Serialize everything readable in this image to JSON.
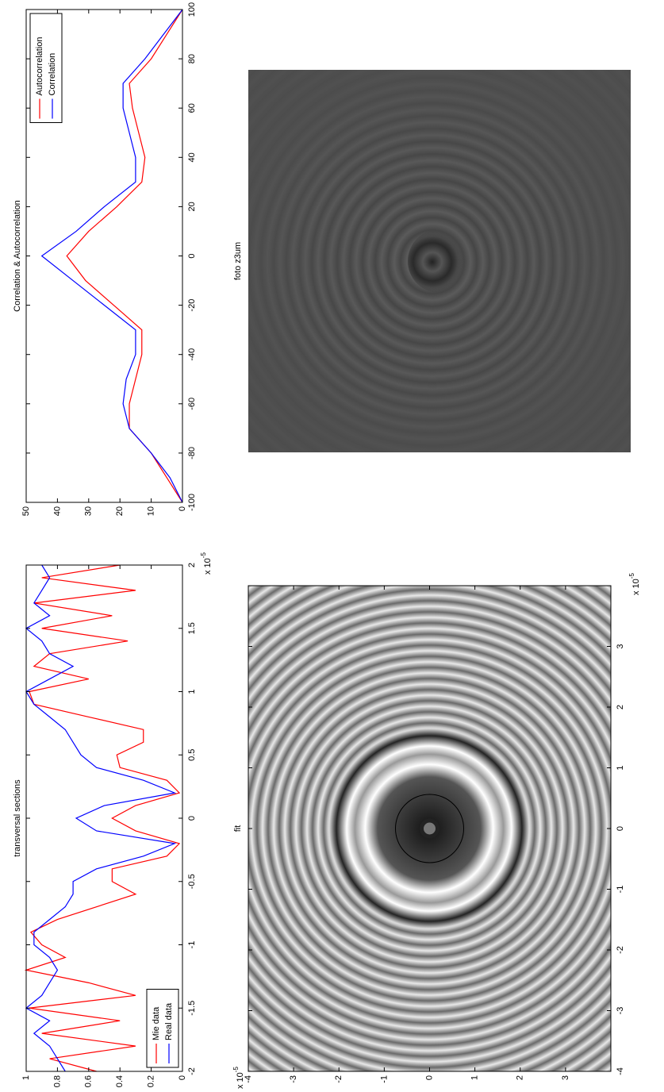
{
  "chart_data": [
    {
      "type": "line",
      "title": "transversal sections",
      "x": [
        -2,
        -1.9,
        -1.8,
        -1.7,
        -1.6,
        -1.5,
        -1.4,
        -1.3,
        -1.2,
        -1.1,
        -1,
        -0.9,
        -0.8,
        -0.7,
        -0.6,
        -0.5,
        -0.4,
        -0.3,
        -0.2,
        -0.1,
        0,
        0.1,
        0.2,
        0.3,
        0.4,
        0.5,
        0.6,
        0.7,
        0.8,
        0.9,
        1,
        1.1,
        1.2,
        1.3,
        1.4,
        1.5,
        1.6,
        1.7,
        1.8,
        1.9,
        2
      ],
      "series": [
        {
          "name": "Mie data",
          "color": "#ff0000",
          "values": [
            0.55,
            0.85,
            0.3,
            0.9,
            0.4,
            0.98,
            0.3,
            0.6,
            1.0,
            0.75,
            0.9,
            0.97,
            0.8,
            0.55,
            0.3,
            0.45,
            0.45,
            0.1,
            0.02,
            0.3,
            0.45,
            0.3,
            0.02,
            0.1,
            0.4,
            0.42,
            0.25,
            0.25,
            0.6,
            0.95,
            0.98,
            0.6,
            0.95,
            0.85,
            0.35,
            0.9,
            0.45,
            0.95,
            0.3,
            0.9,
            0.4
          ]
        },
        {
          "name": "Real data",
          "color": "#0000ff",
          "values": [
            0.75,
            0.8,
            0.85,
            0.95,
            0.85,
            1.0,
            0.9,
            0.85,
            0.8,
            0.85,
            0.95,
            0.95,
            0.85,
            0.75,
            0.7,
            0.7,
            0.55,
            0.25,
            0.05,
            0.55,
            0.68,
            0.5,
            0.05,
            0.25,
            0.55,
            0.65,
            0.7,
            0.75,
            0.85,
            0.95,
            1.0,
            0.85,
            0.7,
            0.85,
            0.9,
            1.0,
            0.85,
            0.95,
            0.9,
            0.85,
            0.9
          ]
        }
      ],
      "xlim": [
        -2,
        2
      ],
      "xticks": [
        -2,
        -1.5,
        -1,
        -0.5,
        0,
        0.5,
        1,
        1.5,
        2
      ],
      "ylim": [
        0,
        1
      ],
      "yticks": [
        0,
        0.2,
        0.4,
        0.6,
        0.8,
        1
      ],
      "x_scale_label": "x 10",
      "x_scale_exponent": "-5",
      "legend": "lower left"
    },
    {
      "type": "line",
      "title": "Correlation & Autocorrelation",
      "x": [
        -100,
        -90,
        -80,
        -70,
        -60,
        -50,
        -40,
        -30,
        -20,
        -10,
        0,
        10,
        20,
        30,
        40,
        50,
        60,
        70,
        80,
        90,
        100
      ],
      "series": [
        {
          "name": "Autocorrelation",
          "color": "#ff0000",
          "values": [
            0,
            5,
            10,
            17,
            17,
            15,
            13,
            13,
            22,
            31,
            37,
            30,
            21,
            13,
            12,
            14,
            16,
            17,
            10,
            5,
            0
          ]
        },
        {
          "name": "Correlation",
          "color": "#0000ff",
          "values": [
            0,
            4,
            10,
            17,
            19,
            18,
            15,
            15,
            25,
            35,
            45,
            34,
            25,
            15,
            15,
            17,
            19,
            19,
            12,
            6,
            0
          ]
        }
      ],
      "xlim": [
        -100,
        100
      ],
      "xticks": [
        -100,
        -80,
        -60,
        -40,
        -20,
        0,
        20,
        40,
        60,
        80,
        100
      ],
      "ylim": [
        0,
        50
      ],
      "yticks": [
        0,
        10,
        20,
        30,
        40,
        50
      ],
      "legend": "upper right"
    },
    {
      "type": "image",
      "title": "fit",
      "xlim": [
        -4,
        4
      ],
      "xticks": [
        -4,
        -3,
        -2,
        -1,
        0,
        1,
        2,
        3
      ],
      "ylim": [
        -4,
        4
      ],
      "yticks": [
        -4,
        -3,
        -2,
        -1,
        0,
        1,
        2,
        3
      ],
      "y_reversed": true,
      "x_scale_label": "x 10",
      "x_scale_exponent": "-5",
      "y_scale_label": "x 10",
      "y_scale_exponent": "-5"
    },
    {
      "type": "image",
      "title": "foto z3um"
    }
  ]
}
